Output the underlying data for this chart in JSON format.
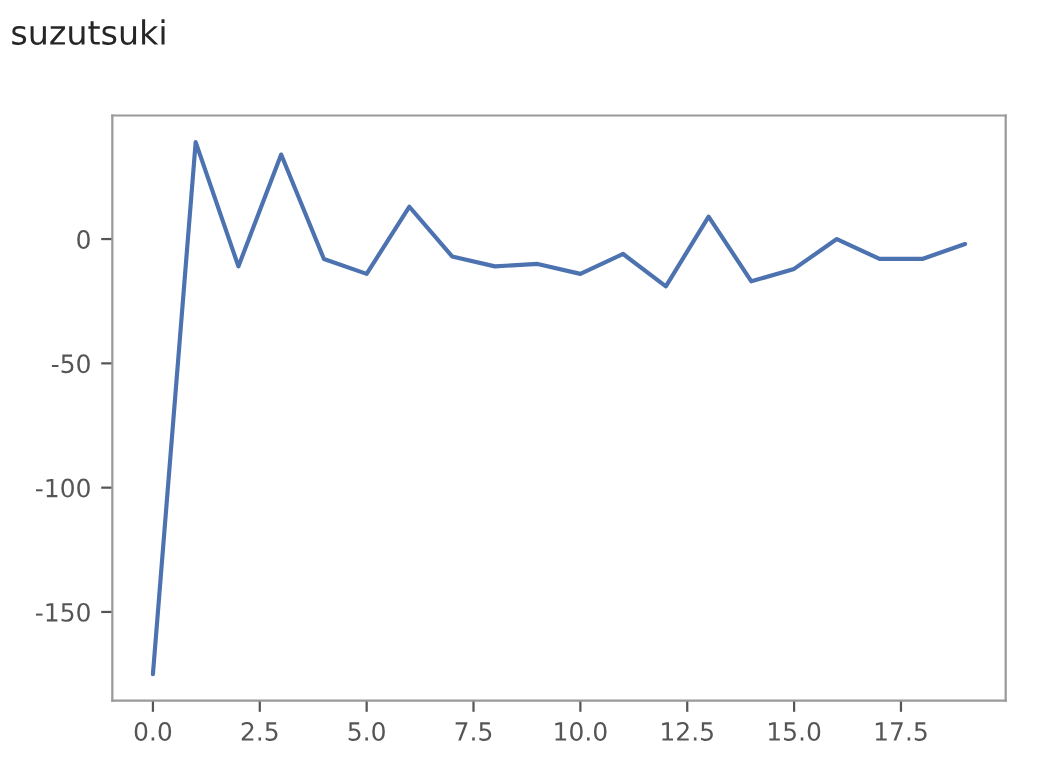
{
  "chart_data": {
    "type": "line",
    "title": "suzutsuki",
    "x": [
      0,
      1,
      2,
      3,
      4,
      5,
      6,
      7,
      8,
      9,
      10,
      11,
      12,
      13,
      14,
      15,
      16,
      17,
      18,
      19
    ],
    "series": [
      {
        "color": "#4c72b0",
        "values": [
          -175,
          39,
          -11,
          34,
          -8,
          -14,
          13,
          -7,
          -11,
          -10,
          -14,
          -6,
          -19,
          9,
          -17,
          -12,
          0,
          -8,
          -8,
          -2
        ]
      }
    ],
    "xlim": [
      -0.95,
      19.95
    ],
    "ylim": [
      -185.7,
      49.7
    ],
    "xticks": [
      {
        "value": 0,
        "label": "0.0"
      },
      {
        "value": 2.5,
        "label": "2.5"
      },
      {
        "value": 5,
        "label": "5.0"
      },
      {
        "value": 7.5,
        "label": "7.5"
      },
      {
        "value": 10,
        "label": "10.0"
      },
      {
        "value": 12.5,
        "label": "12.5"
      },
      {
        "value": 15,
        "label": "15.0"
      },
      {
        "value": 17.5,
        "label": "17.5"
      }
    ],
    "yticks": [
      -150,
      -100,
      -50,
      0
    ],
    "grid": false,
    "legend": false
  }
}
